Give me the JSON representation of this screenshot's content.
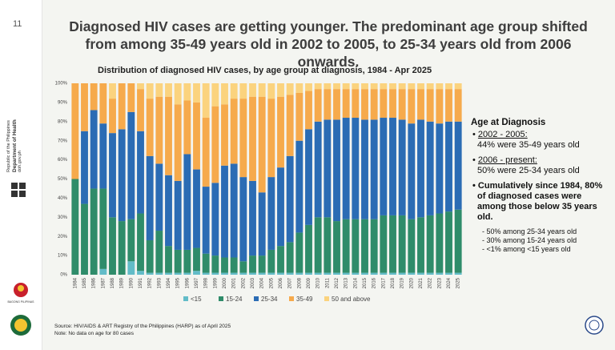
{
  "slide": {
    "page_number": "11",
    "sidebar": {
      "republic": "Republic of the Philippines",
      "department": "Department of Health",
      "website": "doh.gov.ph",
      "logo_caption": "BAGONG PILIPINAS"
    },
    "title": "Diagnosed HIV cases are getting younger. The predominant age group shifted from among 35-49 years old in 2002 to 2005, to 25-34 years old from 2006 onwards.",
    "panel": {
      "heading": "Age at Diagnosis",
      "items": [
        {
          "period": "2002 - 2005:",
          "text": "44% were 35-49 years old"
        },
        {
          "period": "2006 - present:",
          "text": "50% were 25-34 years old"
        }
      ],
      "summary": "Cumulatively since 1984, 80% of diagnosed cases were among those below 35 years old.",
      "details": [
        "50% among 25-34 years old",
        "30% among 15-24 years old",
        "<1% among <15 years old"
      ]
    },
    "source": [
      "Source: HIV/AIDS & ART Registry of the Philippines (HARP) as of April 2025",
      "Note: No data on age for 80 cases"
    ]
  },
  "chart_data": {
    "type": "stacked_bar",
    "title": "Distribution of diagnosed HIV cases, by age group at diagnosis, 1984 - Apr 2025",
    "categories": [
      "1984",
      "1985",
      "1986",
      "1987",
      "1988",
      "1989",
      "1990",
      "1991",
      "1992",
      "1993",
      "1994",
      "1995",
      "1996",
      "1997",
      "1998",
      "1999",
      "2000",
      "2001",
      "2002",
      "2003",
      "2004",
      "2005",
      "2006",
      "2007",
      "2008",
      "2009",
      "2010",
      "2011",
      "2012",
      "2013",
      "2014",
      "2015",
      "2016",
      "2017",
      "2018",
      "2019",
      "2020",
      "2021",
      "2022",
      "2023",
      "2024",
      "2025"
    ],
    "series": [
      {
        "name": "<15",
        "color": "#62bcc8",
        "values": [
          0,
          0,
          0,
          3,
          0,
          0,
          7,
          2,
          1,
          1,
          1,
          1,
          1,
          2,
          1,
          1,
          1,
          1,
          1,
          1,
          1,
          1,
          1,
          1,
          1,
          1,
          1,
          1,
          1,
          1,
          1,
          1,
          1,
          1,
          1,
          1,
          1,
          1,
          1,
          1,
          1,
          1
        ]
      },
      {
        "name": "15-24",
        "color": "#2f8c6a",
        "values": [
          50,
          37,
          45,
          42,
          30,
          28,
          22,
          30,
          17,
          22,
          14,
          12,
          12,
          12,
          10,
          9,
          8,
          8,
          6,
          9,
          9,
          12,
          14,
          16,
          21,
          25,
          29,
          29,
          27,
          28,
          28,
          28,
          28,
          30,
          30,
          30,
          28,
          29,
          30,
          31,
          32,
          33
        ]
      },
      {
        "name": "25-34",
        "color": "#2b6cb4",
        "values": [
          0,
          38,
          41,
          34,
          44,
          48,
          56,
          43,
          44,
          35,
          37,
          36,
          50,
          41,
          35,
          38,
          48,
          49,
          44,
          39,
          33,
          38,
          41,
          45,
          48,
          50,
          50,
          51,
          53,
          53,
          53,
          52,
          52,
          51,
          51,
          50,
          50,
          51,
          49,
          47,
          47,
          46
        ]
      },
      {
        "name": "35-49",
        "color": "#f6aa4c",
        "values": [
          50,
          25,
          14,
          21,
          18,
          24,
          15,
          22,
          30,
          35,
          41,
          40,
          28,
          35,
          36,
          40,
          32,
          34,
          41,
          44,
          50,
          41,
          37,
          32,
          25,
          20,
          17,
          16,
          16,
          15,
          15,
          16,
          16,
          15,
          15,
          16,
          18,
          16,
          17,
          18,
          17,
          17
        ]
      },
      {
        "name": "50 and above",
        "color": "#fbd37e",
        "values": [
          0,
          0,
          0,
          0,
          8,
          0,
          0,
          3,
          8,
          7,
          7,
          11,
          9,
          10,
          18,
          12,
          11,
          8,
          8,
          7,
          7,
          8,
          7,
          6,
          5,
          4,
          3,
          3,
          3,
          3,
          3,
          3,
          3,
          3,
          3,
          3,
          3,
          3,
          3,
          3,
          3,
          3
        ]
      }
    ],
    "ylim": [
      0,
      100
    ],
    "yticks": [
      {
        "value": 0,
        "label": "0%"
      },
      {
        "value": 10,
        "label": "10%"
      },
      {
        "value": 20,
        "label": "20%"
      },
      {
        "value": 30,
        "label": "30%"
      },
      {
        "value": 40,
        "label": "40%"
      },
      {
        "value": 50,
        "label": "50%"
      },
      {
        "value": 60,
        "label": "60%"
      },
      {
        "value": 70,
        "label": "70%"
      },
      {
        "value": 80,
        "label": "80%"
      },
      {
        "value": 90,
        "label": "90%"
      },
      {
        "value": 100,
        "label": "100%"
      }
    ],
    "grid": false
  }
}
